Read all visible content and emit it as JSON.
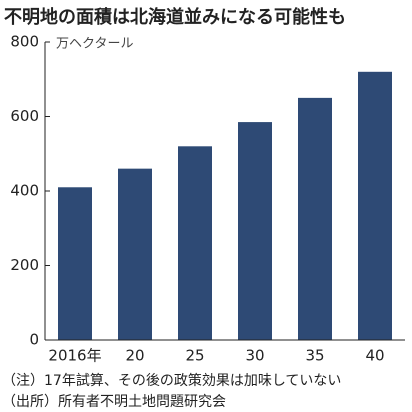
{
  "chart_data": {
    "type": "bar",
    "title": "不明地の面積は北海道並みになる可能性も",
    "y_label": "万ヘクタール",
    "categories": [
      "2016年",
      "20",
      "25",
      "30",
      "35",
      "40"
    ],
    "values": [
      410,
      460,
      520,
      585,
      650,
      720
    ],
    "color": "#2e4a75",
    "ylim": [
      0,
      800
    ],
    "yticks": [
      0,
      200,
      400,
      600,
      800
    ],
    "grid": false,
    "notes": [
      "（注）17年試算、その後の政策効果は加味していない",
      "（出所）所有者不明土地問題研究会"
    ]
  }
}
